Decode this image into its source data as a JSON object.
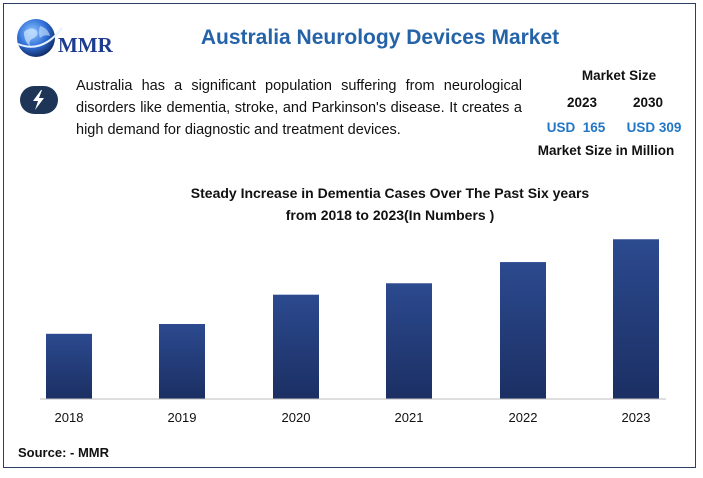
{
  "header": {
    "logo_text": "MMR",
    "title": "Australia Neurology Devices Market"
  },
  "intro": {
    "icon": "lightning-icon",
    "text": "Australia has a significant population suffering from neurological disorders like dementia, stroke, and Parkinson's disease. It creates a high demand for diagnostic and treatment devices."
  },
  "market_size": {
    "title": "Market Size",
    "year_start": "2023",
    "year_end": "2030",
    "value_start": "USD  165",
    "value_end": "USD 309",
    "footer": "Market Size in Million"
  },
  "colors": {
    "bar_top": "#2c4a8f",
    "bar_bottom": "#1b2f63",
    "title": "#2563a8",
    "value": "#2176c6"
  },
  "chart_data": {
    "type": "bar",
    "title": "Steady Increase in Dementia Cases Over The Past Six years",
    "subtitle": "from 2018 to 2023(In Numbers )",
    "categories": [
      "2018",
      "2019",
      "2020",
      "2021",
      "2022",
      "2023"
    ],
    "values": [
      40,
      46,
      64,
      71,
      84,
      98
    ],
    "ylim": [
      0,
      100
    ],
    "grid": false,
    "xlabel": "",
    "ylabel": ""
  },
  "footer": {
    "source": "Source: - MMR"
  }
}
